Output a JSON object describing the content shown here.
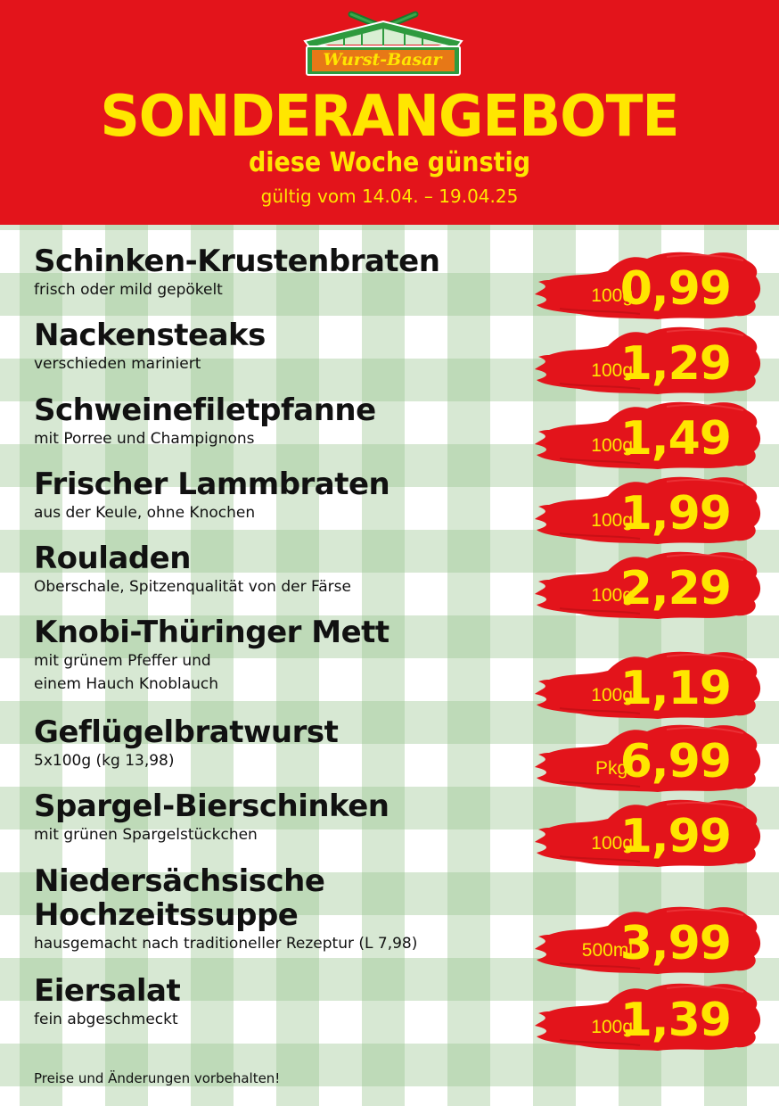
{
  "logo": {
    "text": "Wurst-Basar",
    "icon": "market-stall-logo-icon"
  },
  "header": {
    "headline": "SONDERANGEBOTE",
    "subline": "diese Woche günstig",
    "validity": "gültig vom 14.04. – 19.04.25"
  },
  "colors": {
    "header_red": "#e3141b",
    "accent_yellow": "#ffe600",
    "brush_red": "#e3141b",
    "check_green": "#96c38c"
  },
  "products": [
    {
      "name": "Schinken-Krustenbraten",
      "desc": [
        "frisch oder mild gepökelt"
      ],
      "unit": "100g",
      "price": "0,99"
    },
    {
      "name": "Nackensteaks",
      "desc": [
        "verschieden mariniert"
      ],
      "unit": "100g",
      "price": "1,29"
    },
    {
      "name": "Schweinefiletpfanne",
      "desc": [
        "mit Porree und Champignons"
      ],
      "unit": "100g",
      "price": "1,49"
    },
    {
      "name": "Frischer Lammbraten",
      "desc": [
        "aus der Keule, ohne Knochen"
      ],
      "unit": "100g",
      "price": "1,99"
    },
    {
      "name": "Rouladen",
      "desc": [
        "Oberschale, Spitzenqualität von der Färse"
      ],
      "unit": "100g",
      "price": "2,29"
    },
    {
      "name": "Knobi-Thüringer Mett",
      "desc": [
        "mit grünem Pfeffer und",
        "einem Hauch Knoblauch"
      ],
      "unit": "100g",
      "price": "1,19"
    },
    {
      "name": "Geflügelbratwurst",
      "desc": [
        "5x100g (kg 13,98)"
      ],
      "unit": "Pkg.",
      "price": "6,99"
    },
    {
      "name": "Spargel-Bierschinken",
      "desc": [
        "mit grünen Spargelstückchen"
      ],
      "unit": "100g",
      "price": "1,99"
    },
    {
      "name": "Niedersächsische Hochzeitssuppe",
      "name_lines": [
        "Niedersächsische",
        "Hochzeitssuppe"
      ],
      "desc": [
        "hausgemacht nach traditioneller Rezeptur (L 7,98)"
      ],
      "unit": "500ml",
      "price": "3,99"
    },
    {
      "name": "Eiersalat",
      "desc": [
        "fein abgeschmeckt"
      ],
      "unit": "100g",
      "price": "1,39"
    }
  ],
  "footer": "Preise und Änderungen vorbehalten!"
}
